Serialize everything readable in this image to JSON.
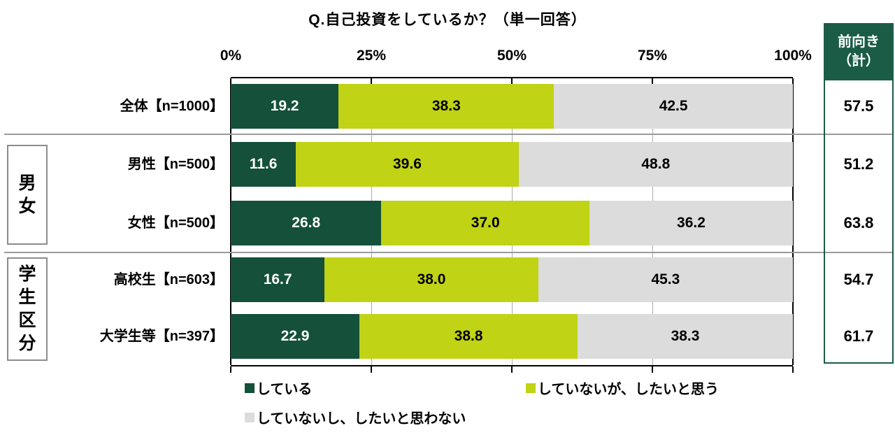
{
  "title": "Q.自己投資をしているか？（単一回答）",
  "chart_data": {
    "type": "bar",
    "stacked": true,
    "orientation": "horizontal",
    "title": "Q.自己投資をしているか？（単一回答）",
    "x_axis": {
      "ticks": [
        "0%",
        "25%",
        "50%",
        "75%",
        "100%"
      ],
      "range": [
        0,
        100
      ],
      "grid": true
    },
    "categories": [
      "全体【n=1000】",
      "男性【n=500】",
      "女性【n=500】",
      "高校生【n=603】",
      "大学生等【n=397】"
    ],
    "groups": [
      {
        "label": "男女",
        "rows": [
          1,
          2
        ]
      },
      {
        "label": "学生区分",
        "rows": [
          3,
          4
        ]
      }
    ],
    "series": [
      {
        "name": "している",
        "color": "#14503a",
        "label_color": "#ffffff",
        "values": [
          "19.2",
          "11.6",
          "26.8",
          "16.7",
          "22.9"
        ]
      },
      {
        "name": "していないが、したいと思う",
        "color": "#c0d314",
        "label_color": "#000000",
        "values": [
          "38.3",
          "39.6",
          "37.0",
          "38.0",
          "38.8"
        ]
      },
      {
        "name": "していないし、したいと思わない",
        "color": "#dcdcdc",
        "label_color": "#000000",
        "values": [
          "42.5",
          "48.8",
          "36.2",
          "45.3",
          "38.3"
        ]
      }
    ],
    "summary_column": {
      "header_line1": "前向き",
      "header_line2": "（計）",
      "header_bg": "#1b5c46",
      "values": [
        "57.5",
        "51.2",
        "63.8",
        "54.7",
        "61.7"
      ]
    },
    "legend_position": "bottom"
  },
  "legend": {
    "items": [
      {
        "label": "している",
        "color": "#14503a"
      },
      {
        "label": "していないが、したいと思う",
        "color": "#c0d314"
      },
      {
        "label": "していないし、したいと思わない",
        "color": "#dcdcdc"
      }
    ]
  }
}
